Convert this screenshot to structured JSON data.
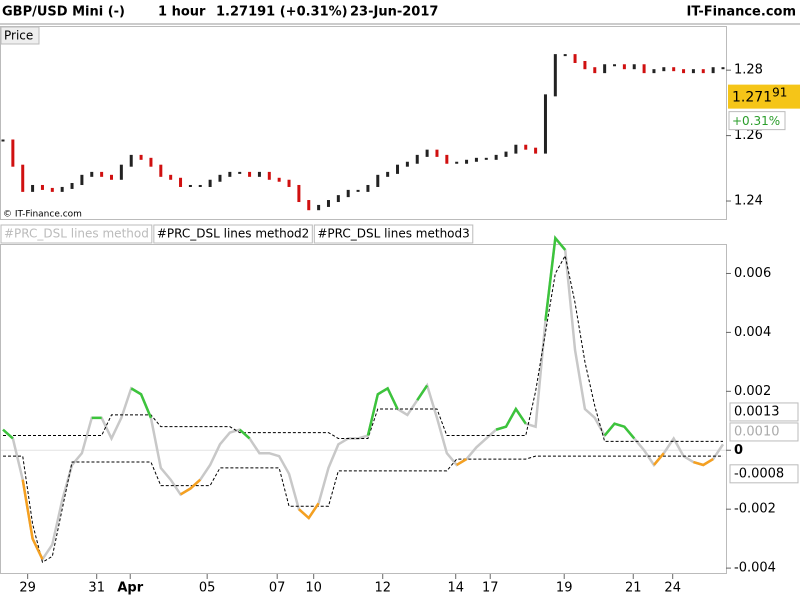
{
  "header": {
    "instrument": "GBP/USD Mini (-)",
    "timeframe": "1 hour",
    "quote": "1.27191 (+0.31%)",
    "date": "23-Jun-2017",
    "brand": "IT-Finance.com"
  },
  "chart_data": [
    {
      "type": "bars",
      "panel_label": "Price",
      "watermark": "© IT-Finance.com",
      "up_color": "#222222",
      "down_color": "#d01010",
      "values": [
        1.2585,
        1.2508,
        1.2431,
        1.2446,
        1.2437,
        1.2431,
        1.244,
        1.2452,
        1.2477,
        1.2486,
        1.2477,
        1.2468,
        1.2508,
        1.2538,
        1.2529,
        1.2508,
        1.2477,
        1.2468,
        1.2446,
        1.2446,
        1.2446,
        1.2462,
        1.2477,
        1.2486,
        1.2486,
        1.2477,
        1.2486,
        1.2468,
        1.2462,
        1.2446,
        1.24,
        1.2375,
        1.2385,
        1.24,
        1.2415,
        1.2431,
        1.2431,
        1.2446,
        1.2477,
        1.2486,
        1.2508,
        1.2517,
        1.2538,
        1.2554,
        1.2538,
        1.2517,
        1.2517,
        1.2523,
        1.2529,
        1.2529,
        1.2538,
        1.2548,
        1.2569,
        1.256,
        1.2548,
        1.2723,
        1.2846,
        1.2846,
        1.2825,
        1.2806,
        1.2794,
        1.2815,
        1.2815,
        1.2806,
        1.2815,
        1.2794,
        1.28,
        1.2806,
        1.28,
        1.2794,
        1.28,
        1.2794,
        1.2806,
        1.2806
      ],
      "xlim": [
        0,
        73
      ],
      "ylim": [
        1.2342,
        1.2935
      ],
      "yticks": [
        1.24,
        1.26,
        1.28
      ],
      "last_price": {
        "value": 1.27191,
        "label": "1.271",
        "label_sup": "91",
        "color": "#f5c518"
      },
      "change_label": "+0.31%",
      "change_color": "#2a9d2a"
    },
    {
      "type": "line",
      "tabs": [
        "#PRC_DSL lines method",
        "#PRC_DSL lines method2",
        "#PRC_DSL lines method3"
      ],
      "above_color": "#3cc43c",
      "below_color": "#f5a020",
      "series": [
        {
          "color": "#c8c8c8",
          "values": [
            0.0007,
            0.0004,
            -0.001,
            -0.003,
            -0.0037,
            -0.0032,
            -0.0017,
            -0.0005,
            -0.0001,
            0.0011,
            0.0011,
            0.0004,
            0.0011,
            0.0021,
            0.0019,
            0.0011,
            -0.0006,
            -0.001,
            -0.0015,
            -0.0013,
            -0.001,
            -0.0005,
            0.0002,
            0.0006,
            0.0007,
            0.0004,
            -0.0001,
            -0.0001,
            -0.0002,
            -0.0008,
            -0.002,
            -0.0023,
            -0.0018,
            -0.0006,
            0.0002,
            0.0004,
            0.0004,
            0.0005,
            0.0019,
            0.0021,
            0.0014,
            0.0012,
            0.0017,
            0.0022,
            0.0011,
            -0.0001,
            -0.0005,
            -0.0003,
            0.0001,
            0.0004,
            0.0007,
            0.0008,
            0.0014,
            0.0009,
            0.0008,
            0.0044,
            0.0072,
            0.0068,
            0.0034,
            0.0014,
            0.0011,
            0.0005,
            0.0009,
            0.0008,
            0.0004,
            0.0,
            -0.0005,
            -0.0001,
            0.0004,
            -0.0002,
            -0.0004,
            -0.0005,
            -0.0003,
            0.0002
          ]
        },
        {
          "color": "#000000",
          "dashed": true,
          "values": [
            0.0005,
            0.0005,
            0.0005,
            0.0005,
            0.0005,
            0.0005,
            0.0005,
            0.0005,
            0.0005,
            0.0005,
            0.0005,
            0.0012,
            0.0012,
            0.0012,
            0.0012,
            0.0012,
            0.0008,
            0.0008,
            0.0008,
            0.0008,
            0.0008,
            0.0008,
            0.0008,
            0.0008,
            0.0006,
            0.0006,
            0.0006,
            0.0006,
            0.0006,
            0.0006,
            0.0006,
            0.0006,
            0.0006,
            0.0006,
            0.0004,
            0.0004,
            0.0004,
            0.0004,
            0.0014,
            0.0014,
            0.0014,
            0.0014,
            0.0014,
            0.0014,
            0.0014,
            0.0005,
            0.0005,
            0.0005,
            0.0005,
            0.0005,
            0.0005,
            0.0005,
            0.0005,
            0.0005,
            0.002,
            0.004,
            0.006,
            0.0066,
            0.005,
            0.003,
            0.0015,
            0.0003,
            0.0003,
            0.0003,
            0.0003,
            0.0003,
            0.0003,
            0.0003,
            0.0003,
            0.0003,
            0.0003,
            0.0003,
            0.0003,
            0.0003
          ]
        },
        {
          "color": "#000000",
          "dashed": true,
          "values": [
            -0.0002,
            -0.0002,
            -0.0002,
            -0.0025,
            -0.0038,
            -0.0036,
            -0.002,
            -0.0004,
            -0.0004,
            -0.0004,
            -0.0004,
            -0.0004,
            -0.0004,
            -0.0004,
            -0.0004,
            -0.0004,
            -0.0012,
            -0.0012,
            -0.0012,
            -0.0012,
            -0.0012,
            -0.0012,
            -0.0006,
            -0.0006,
            -0.0006,
            -0.0006,
            -0.0006,
            -0.0006,
            -0.0006,
            -0.0019,
            -0.0019,
            -0.0019,
            -0.0019,
            -0.0019,
            -0.0007,
            -0.0007,
            -0.0007,
            -0.0007,
            -0.0007,
            -0.0007,
            -0.0007,
            -0.0007,
            -0.0007,
            -0.0007,
            -0.0007,
            -0.0007,
            -0.0003,
            -0.0003,
            -0.0003,
            -0.0003,
            -0.0003,
            -0.0003,
            -0.0003,
            -0.0003,
            -0.0002,
            -0.0002,
            -0.0002,
            -0.0002,
            -0.0002,
            -0.0002,
            -0.0002,
            -0.0002,
            -0.0002,
            -0.0002,
            -0.0002,
            -0.0002,
            -0.0002,
            -0.0002,
            -0.0002,
            -0.0002,
            -0.0002,
            -0.0002,
            -0.0002,
            -0.0002
          ]
        }
      ],
      "xlim": [
        0,
        73
      ],
      "ylim": [
        -0.0042,
        0.007
      ],
      "yticks": [
        -0.004,
        -0.002,
        0,
        0.002,
        0.004,
        0.006
      ],
      "xticks": [
        {
          "value": 2.5,
          "label": "29"
        },
        {
          "value": 9.5,
          "label": "31"
        },
        {
          "value": 12.9,
          "label": "Apr"
        },
        {
          "value": 20.7,
          "label": "05"
        },
        {
          "value": 27.8,
          "label": "07"
        },
        {
          "value": 31.5,
          "label": "10"
        },
        {
          "value": 38.5,
          "label": "12"
        },
        {
          "value": 45.9,
          "label": "14"
        },
        {
          "value": 49.4,
          "label": "17"
        },
        {
          "value": 56.9,
          "label": "19"
        },
        {
          "value": 63.9,
          "label": "21"
        },
        {
          "value": 67.9,
          "label": "24"
        }
      ],
      "markers": [
        {
          "value": 0.0013,
          "label": "0.0013",
          "color": "#000000"
        },
        {
          "value": 0.001,
          "label": "0.0010",
          "color": "#aaaaaa"
        },
        {
          "value": -0.0008,
          "label": "-0.0008",
          "color": "#000000"
        }
      ]
    }
  ]
}
